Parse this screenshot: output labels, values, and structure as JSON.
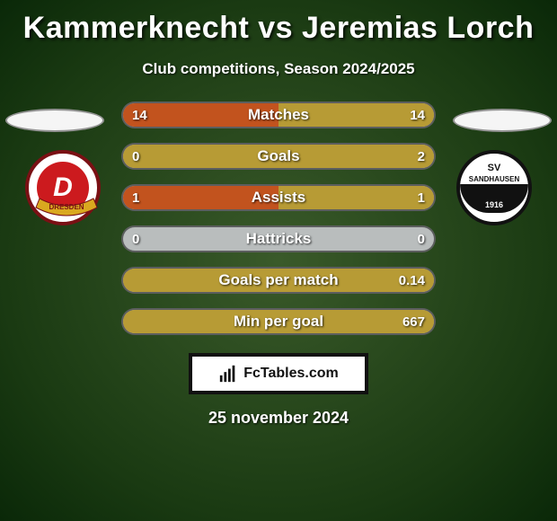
{
  "title": "Kammerknecht vs Jeremias Lorch",
  "subtitle": "Club competitions, Season 2024/2025",
  "date": "25 november 2024",
  "footer_label": "FcTables.com",
  "colors": {
    "fill_left": "#c2531e",
    "fill_right": "#b79b35",
    "bar_bg": "#b9bdbd"
  },
  "team1": {
    "short": "D",
    "banner": "DRESDEN"
  },
  "team2": {
    "line1": "SV",
    "line2": "SANDHAUSEN",
    "year": "1916"
  },
  "stats": [
    {
      "label": "Matches",
      "left_val": "14",
      "right_val": "14",
      "left_pct": 50,
      "right_pct": 50
    },
    {
      "label": "Goals",
      "left_val": "0",
      "right_val": "2",
      "left_pct": 0,
      "right_pct": 100
    },
    {
      "label": "Assists",
      "left_val": "1",
      "right_val": "1",
      "left_pct": 50,
      "right_pct": 50
    },
    {
      "label": "Hattricks",
      "left_val": "0",
      "right_val": "0",
      "left_pct": 0,
      "right_pct": 0
    },
    {
      "label": "Goals per match",
      "left_val": "",
      "right_val": "0.14",
      "left_pct": 0,
      "right_pct": 100
    },
    {
      "label": "Min per goal",
      "left_val": "",
      "right_val": "667",
      "left_pct": 0,
      "right_pct": 100
    }
  ]
}
